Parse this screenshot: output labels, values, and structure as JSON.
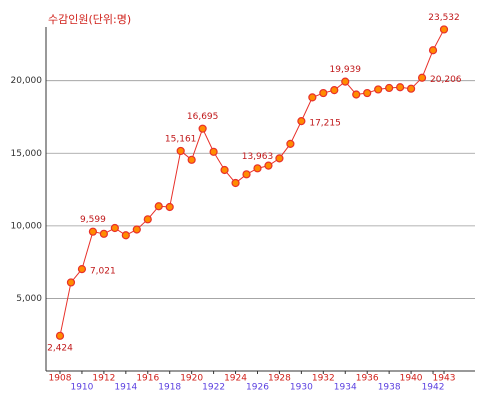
{
  "chart_data": {
    "type": "line",
    "title": "수감인원(단위:명)",
    "x": [
      1908,
      1909,
      1910,
      1911,
      1912,
      1913,
      1914,
      1915,
      1916,
      1917,
      1918,
      1919,
      1920,
      1921,
      1922,
      1923,
      1924,
      1925,
      1926,
      1927,
      1928,
      1929,
      1930,
      1931,
      1932,
      1933,
      1934,
      1935,
      1936,
      1937,
      1938,
      1939,
      1940,
      1941,
      1942,
      1943
    ],
    "series": [
      {
        "name": "수감인원",
        "color": "#e8302a",
        "marker_color": "#ff8c00",
        "values": [
          2424,
          6100,
          7021,
          9599,
          9450,
          9850,
          9350,
          9750,
          10450,
          11350,
          11300,
          15161,
          14550,
          16695,
          15100,
          13850,
          12950,
          13550,
          13963,
          14150,
          14650,
          15650,
          17215,
          18850,
          19150,
          19350,
          19939,
          19050,
          19150,
          19400,
          19500,
          19550,
          19450,
          20206,
          22100,
          23532
        ],
        "value_labels": [
          "2,424",
          null,
          "7,021",
          "9,599",
          null,
          null,
          null,
          null,
          null,
          null,
          null,
          "15,161",
          null,
          "16,695",
          null,
          null,
          null,
          null,
          "13,963",
          null,
          null,
          null,
          "17,215",
          null,
          null,
          null,
          "19,939",
          null,
          null,
          null,
          null,
          null,
          null,
          "20,206",
          null,
          "23,532"
        ]
      }
    ],
    "xlim": [
      1908,
      1943
    ],
    "xticks": [
      1908,
      1910,
      1912,
      1914,
      1916,
      1918,
      1920,
      1922,
      1924,
      1926,
      1928,
      1930,
      1932,
      1934,
      1936,
      1938,
      1940,
      1942,
      1943
    ],
    "ylim": [
      0,
      23700
    ],
    "yticks": [
      {
        "value": 5000,
        "label": "5,000"
      },
      {
        "value": 10000,
        "label": "10,000"
      },
      {
        "value": 15000,
        "label": "15,000"
      },
      {
        "value": 20000,
        "label": "20,000"
      }
    ],
    "grid": true
  }
}
